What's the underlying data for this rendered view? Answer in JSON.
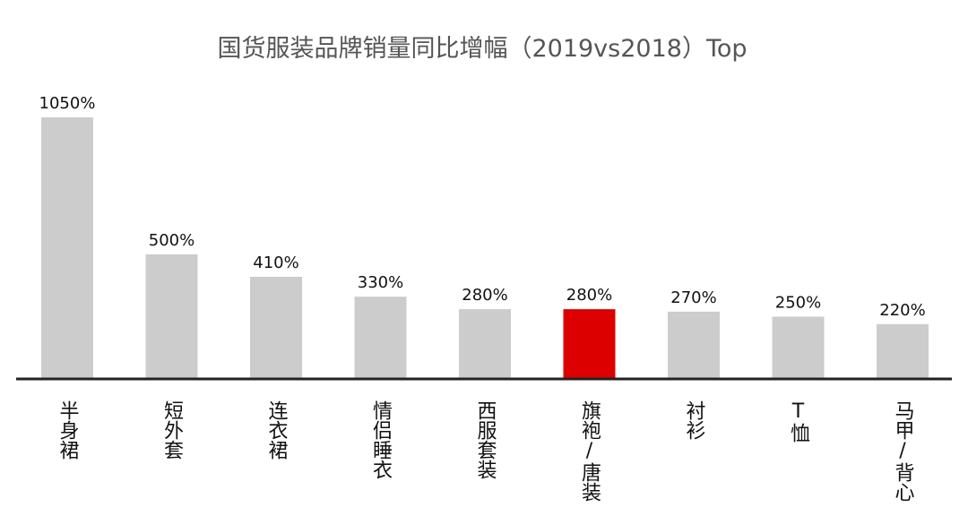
{
  "chart_data": {
    "type": "bar",
    "title": "国货服装品牌销量同比增幅（2019vs2018）Top",
    "categories": [
      "半身裙",
      "短外套",
      "连衣裙",
      "情侣睡衣",
      "西服套装",
      "旗袍/唐装",
      "衬衫",
      "T恤",
      "马甲/背心"
    ],
    "values": [
      1050,
      500,
      410,
      330,
      280,
      280,
      270,
      250,
      220
    ],
    "value_labels": [
      "1050%",
      "500%",
      "410%",
      "330%",
      "280%",
      "280%",
      "270%",
      "250%",
      "220%"
    ],
    "unit": "%",
    "highlight_index": 5,
    "ylim": [
      0,
      1050
    ],
    "grid": false,
    "legend": "none",
    "colors": {
      "bar": "#cccccc",
      "highlight": "#dd0000",
      "axis": "#222222"
    }
  }
}
